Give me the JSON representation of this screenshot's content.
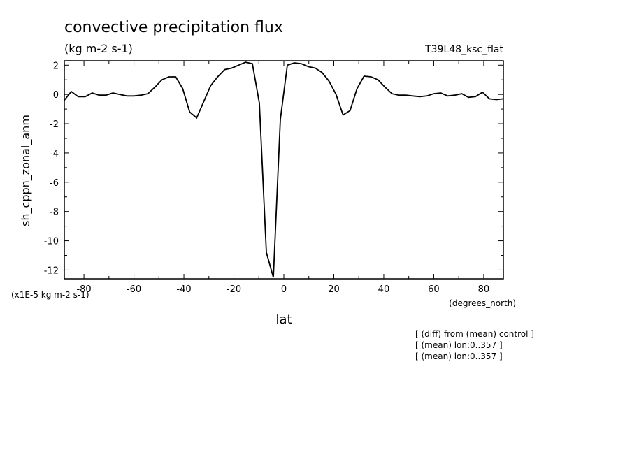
{
  "chart_data": {
    "type": "line",
    "title": "convective precipitation flux",
    "units": "(kg m-2 s-1)",
    "run_label": "T39L48_ksc_flat",
    "ylabel": "sh_cppn_zonal_anm",
    "xlabel": "lat",
    "x_units": "(degrees_north)",
    "y_scale_label": "(x1E-5 kg m-2 s-1)",
    "xlim": [
      -87.86,
      87.86
    ],
    "ylim": [
      -12.6,
      2.3
    ],
    "x_ticks": [
      -80,
      -60,
      -40,
      -20,
      0,
      20,
      40,
      60,
      80
    ],
    "y_ticks": [
      2,
      0,
      -2,
      -4,
      -6,
      -8,
      -10,
      -12
    ],
    "series": [
      {
        "x": [
          -87.86,
          -85.1,
          -82.3,
          -79.5,
          -76.7,
          -73.9,
          -71.2,
          -68.4,
          -65.6,
          -62.8,
          -60.0,
          -57.2,
          -54.4,
          -51.6,
          -48.8,
          -46.0,
          -43.3,
          -40.5,
          -37.7,
          -34.9,
          -32.1,
          -29.3,
          -26.5,
          -23.7,
          -20.9,
          -18.1,
          -15.3,
          -12.6,
          -9.8,
          -7.0,
          -4.2,
          -1.4,
          1.4,
          4.2,
          7.0,
          9.8,
          12.6,
          15.3,
          18.1,
          20.9,
          23.7,
          26.5,
          29.3,
          32.1,
          34.9,
          37.7,
          40.5,
          43.3,
          46.0,
          48.8,
          51.6,
          54.4,
          57.2,
          60.0,
          62.8,
          65.6,
          68.4,
          71.2,
          73.9,
          76.7,
          79.5,
          82.3,
          85.1,
          87.86
        ],
        "y": [
          -0.4,
          0.2,
          -0.15,
          -0.15,
          0.1,
          -0.05,
          -0.05,
          0.1,
          0.0,
          -0.1,
          -0.1,
          -0.05,
          0.05,
          0.5,
          1.0,
          1.2,
          1.2,
          0.4,
          -1.2,
          -1.6,
          -0.5,
          0.6,
          1.2,
          1.7,
          1.8,
          2.0,
          2.2,
          2.1,
          -0.6,
          -10.8,
          -12.5,
          -1.7,
          2.0,
          2.15,
          2.1,
          1.9,
          1.8,
          1.5,
          0.9,
          0.0,
          -1.4,
          -1.1,
          0.4,
          1.25,
          1.2,
          1.0,
          0.5,
          0.05,
          -0.05,
          -0.05,
          -0.1,
          -0.15,
          -0.1,
          0.05,
          0.1,
          -0.1,
          -0.05,
          0.05,
          -0.2,
          -0.15,
          0.15,
          -0.3,
          -0.35,
          -0.3
        ]
      }
    ],
    "annotations": [
      "[ (diff) from (mean) control ]",
      "[ (mean) lon:0..357 ]",
      "[ (mean) lon:0..357 ]"
    ],
    "line_color": "#000000"
  }
}
